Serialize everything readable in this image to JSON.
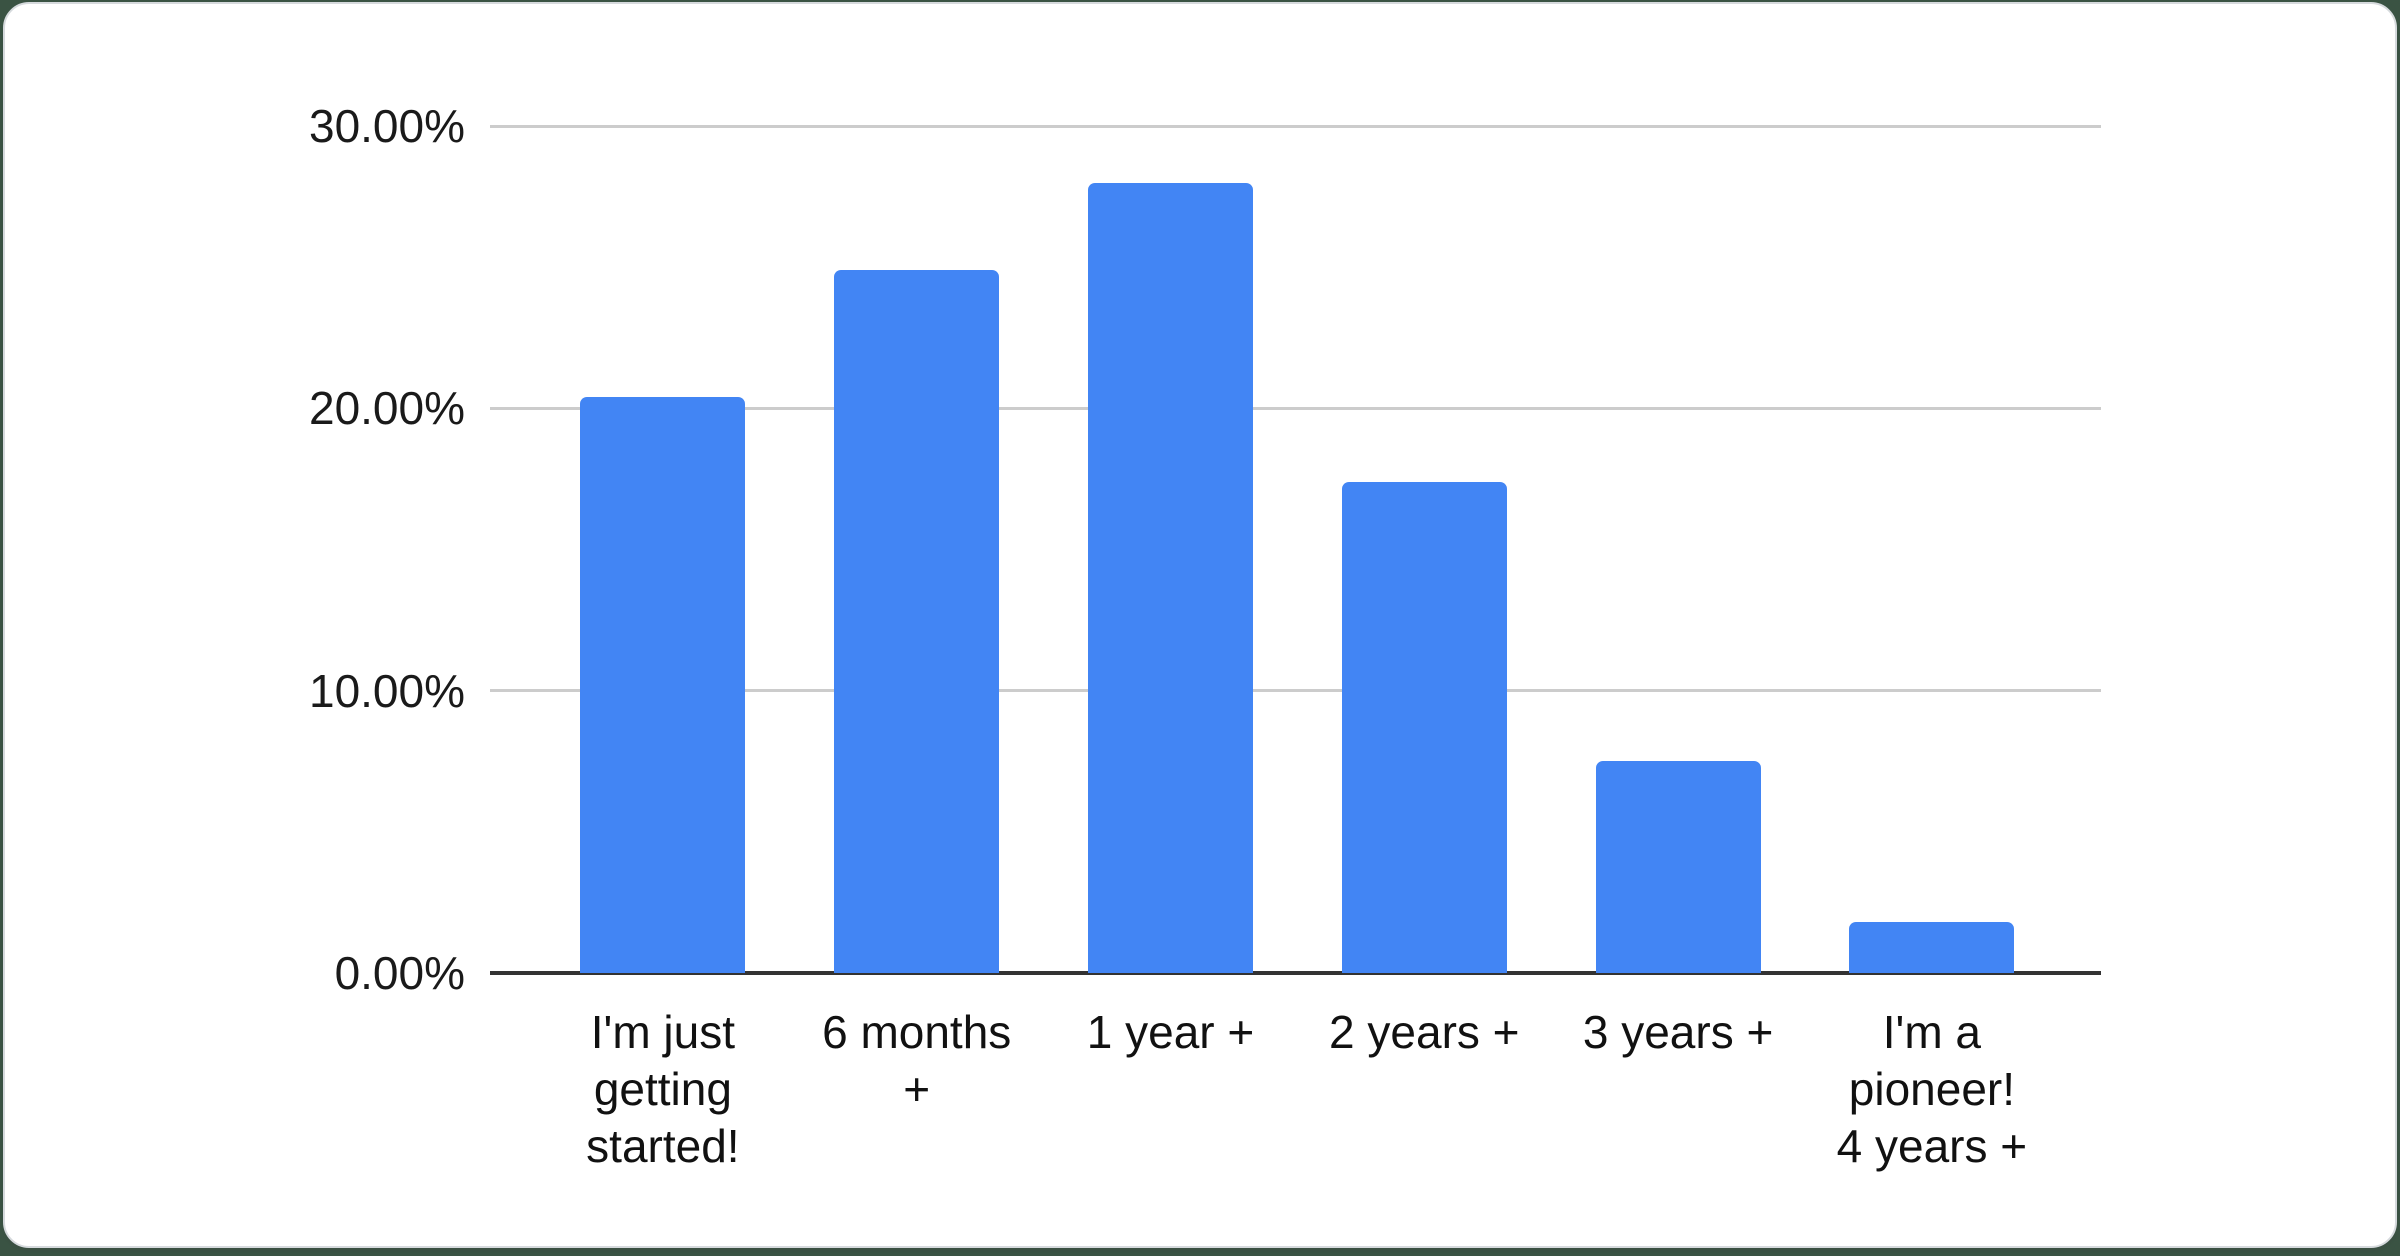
{
  "page": {
    "background_color": "#3a5343"
  },
  "card": {
    "background_color": "#ffffff",
    "edge_color": "#d6dadd"
  },
  "chart_data": {
    "type": "bar",
    "title": "",
    "xlabel": "",
    "ylabel": "",
    "legend": "none",
    "grid": "horizontal",
    "categories": [
      "I'm just getting started!",
      "6 months +",
      "1 year +",
      "2 years +",
      "3 years +",
      "I'm a pioneer! 4 years +"
    ],
    "category_display_lines": [
      [
        "I'm just",
        "getting",
        "started!"
      ],
      [
        "6 months",
        "+"
      ],
      [
        "1 year +"
      ],
      [
        "2 years +"
      ],
      [
        "3 years +"
      ],
      [
        "I'm a",
        "pioneer!",
        "4 years +"
      ]
    ],
    "values": [
      20.4,
      24.9,
      28.0,
      17.4,
      7.5,
      1.8
    ],
    "value_unit": "%",
    "y_ticks": [
      "0.00%",
      "10.00%",
      "20.00%",
      "30.00%"
    ],
    "y_tick_values": [
      0,
      10,
      20,
      30
    ],
    "ylim": [
      0,
      30
    ],
    "bar_color": "#4285f4",
    "gridline_color": "#cccccc",
    "axis_line_color": "#333333",
    "label_color": "#1a1a1a"
  }
}
